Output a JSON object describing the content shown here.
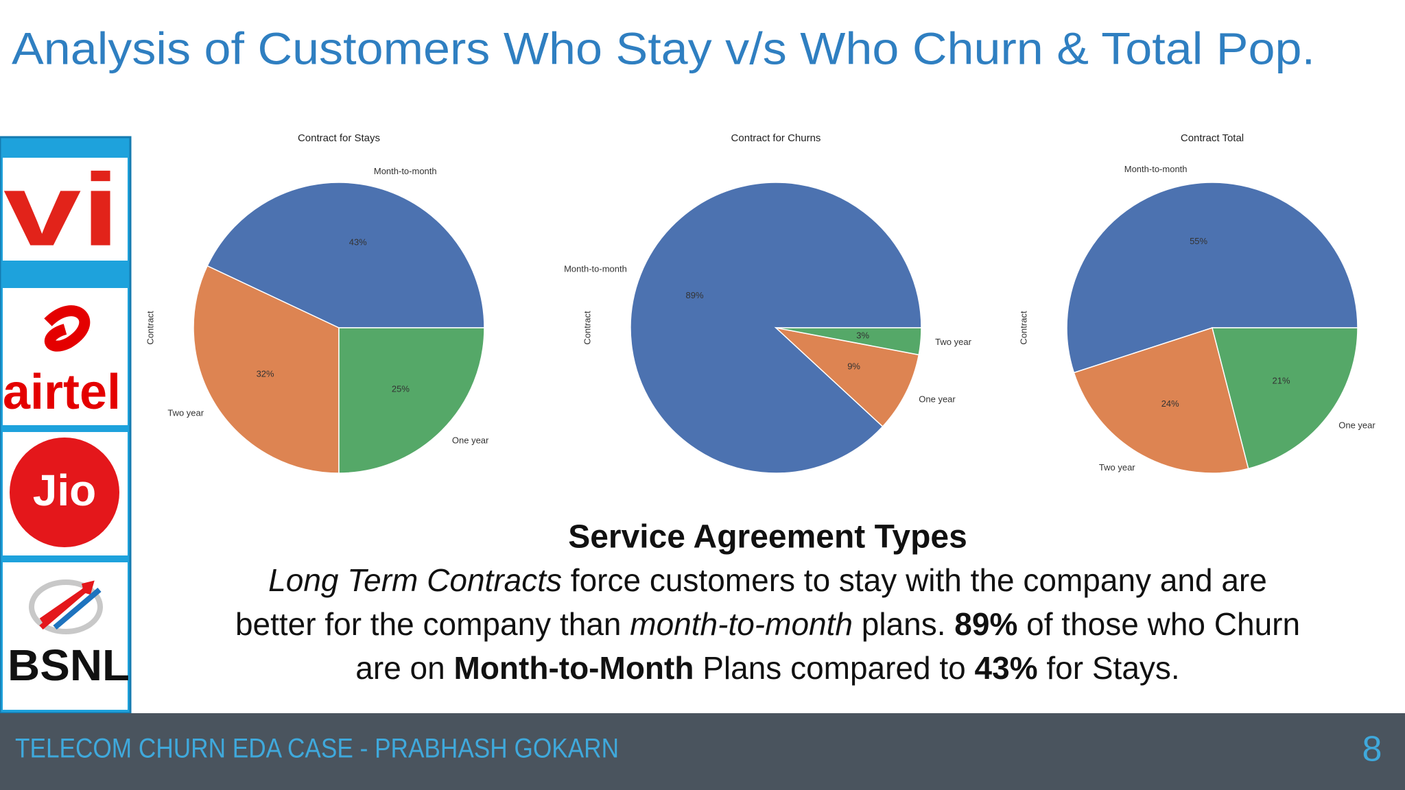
{
  "title": "Analysis of Customers Who Stay v/s Who Churn & Total Pop.",
  "logos": [
    "vi",
    "airtel",
    "Jio",
    "BSNL"
  ],
  "chart_data": [
    {
      "type": "pie",
      "title": "Contract for Stays",
      "ylabel": "Contract",
      "categories": [
        "Month-to-month",
        "Two year",
        "One year"
      ],
      "values": [
        43,
        32,
        25
      ],
      "value_labels": [
        "43%",
        "32%",
        "25%"
      ],
      "colors": [
        "#4c72b0",
        "#dd8452",
        "#55a868"
      ]
    },
    {
      "type": "pie",
      "title": "Contract for Churns",
      "ylabel": "Contract",
      "categories": [
        "Month-to-month",
        "One year",
        "Two year"
      ],
      "values": [
        89,
        9,
        3
      ],
      "value_labels": [
        "89%",
        "9%",
        "3%"
      ],
      "colors": [
        "#4c72b0",
        "#dd8452",
        "#55a868"
      ]
    },
    {
      "type": "pie",
      "title": "Contract Total",
      "ylabel": "Contract",
      "categories": [
        "Month-to-month",
        "Two year",
        "One year"
      ],
      "values": [
        55,
        24,
        21
      ],
      "value_labels": [
        "55%",
        "24%",
        "21%"
      ],
      "colors": [
        "#4c72b0",
        "#dd8452",
        "#55a868"
      ]
    }
  ],
  "caption": {
    "heading": "Service Agreement Types",
    "lines": [
      [
        {
          "text": "Long Term Contracts",
          "style": "italic"
        },
        {
          "text": " force customers to stay with the company and are"
        }
      ],
      [
        {
          "text": "better for the company than "
        },
        {
          "text": "month-to-month",
          "style": "italic"
        },
        {
          "text": " plans. "
        },
        {
          "text": "89%",
          "style": "bold"
        },
        {
          "text": " of those who Churn"
        }
      ],
      [
        {
          "text": "are on "
        },
        {
          "text": "Month-to-Month",
          "style": "bold"
        },
        {
          "text": " Plans compared to "
        },
        {
          "text": "43%",
          "style": "bold"
        },
        {
          "text": " for Stays."
        }
      ]
    ]
  },
  "footer": "TELECOM CHURN EDA CASE - PRABHASH GOKARN",
  "page_number": "8"
}
